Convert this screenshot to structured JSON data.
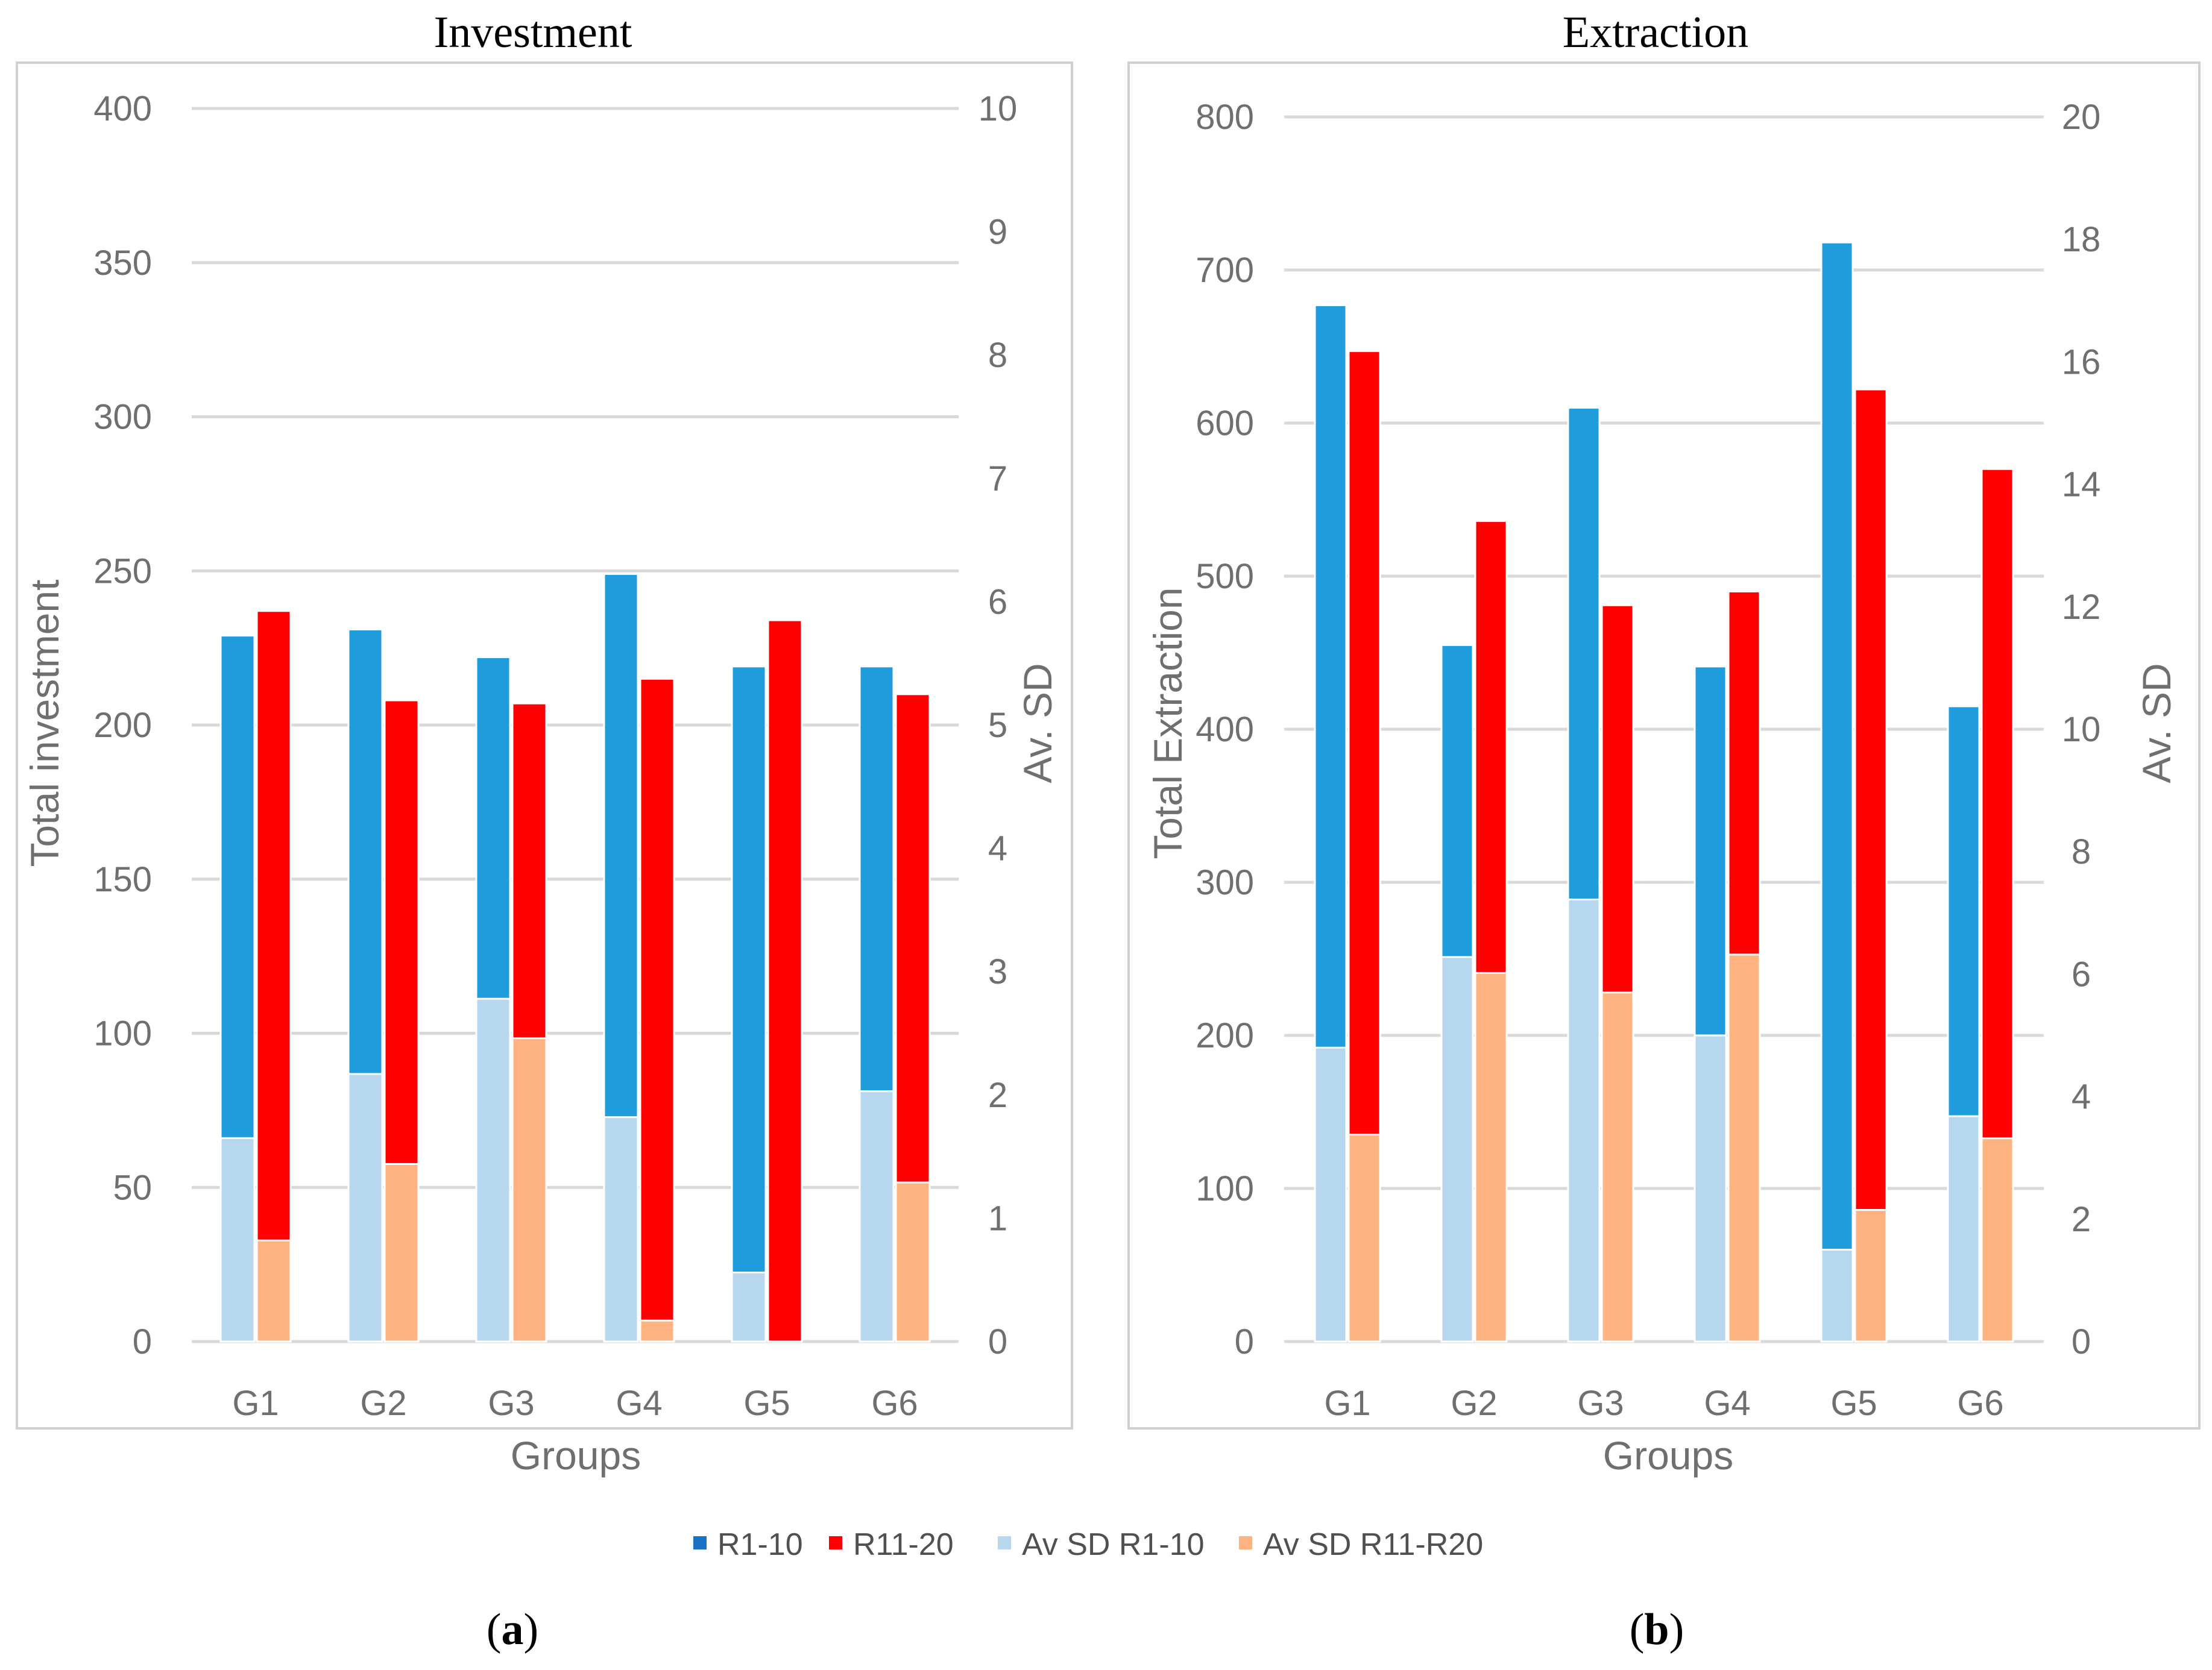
{
  "legend": [
    {
      "label": "R1-10",
      "color": "#1a72c4"
    },
    {
      "label": "R11-20",
      "color": "#ff0000"
    },
    {
      "label": "Av SD R1-10",
      "color": "#b7d7ef"
    },
    {
      "label": "Av SD R11-R20",
      "color": "#ffb380"
    }
  ],
  "colors": {
    "r1_10": "#1f9cdc",
    "r11_20": "#ff0000",
    "sd_r1_10": "#b7d7ef",
    "sd_r11_20": "#ffb380",
    "grid": "#d9d9d9",
    "frame": "#d0d0d0"
  },
  "chart_data": [
    {
      "type": "bar",
      "title": "Investment",
      "caption_letter": "a",
      "categories": [
        "G1",
        "G2",
        "G3",
        "G4",
        "G5",
        "G6"
      ],
      "xlabel": "Groups",
      "ylabel": "Total investment",
      "ylabel_right": "Av. SD",
      "ylim": [
        0,
        400
      ],
      "yticks": [
        "0",
        "50",
        "100",
        "150",
        "200",
        "250",
        "300",
        "350",
        "400"
      ],
      "ylim_right": [
        0,
        10
      ],
      "yticks_right": [
        "0",
        "1",
        "2",
        "3",
        "4",
        "5",
        "6",
        "7",
        "8",
        "9",
        "10"
      ],
      "series": [
        {
          "name": "R1-10",
          "axis": "left",
          "values": [
            229,
            231,
            222,
            249,
            219,
            219
          ]
        },
        {
          "name": "R11-20",
          "axis": "left",
          "values": [
            237,
            208,
            207,
            215,
            234,
            210
          ]
        },
        {
          "name": "Av SD R1-10",
          "axis": "right",
          "values": [
            1.65,
            2.17,
            2.78,
            1.82,
            0.56,
            2.03
          ]
        },
        {
          "name": "Av SD R11-R20",
          "axis": "right",
          "values": [
            0.82,
            1.44,
            2.46,
            0.17,
            0.0,
            1.29
          ]
        }
      ]
    },
    {
      "type": "bar",
      "title": "Extraction",
      "caption_letter": "b",
      "categories": [
        "G1",
        "G2",
        "G3",
        "G4",
        "G5",
        "G6"
      ],
      "xlabel": "Groups",
      "ylabel": "Total Extraction",
      "ylabel_right": "Av. SD",
      "ylim": [
        0,
        800
      ],
      "yticks": [
        "0",
        "100",
        "200",
        "300",
        "400",
        "500",
        "600",
        "700",
        "800"
      ],
      "ylim_right": [
        0,
        20
      ],
      "yticks_right": [
        "0",
        "2",
        "4",
        "6",
        "8",
        "10",
        "12",
        "14",
        "16",
        "18",
        "20"
      ],
      "series": [
        {
          "name": "R1-10",
          "axis": "left",
          "values": [
            677,
            455,
            610,
            441,
            718,
            415
          ]
        },
        {
          "name": "R11-20",
          "axis": "left",
          "values": [
            647,
            536,
            481,
            490,
            622,
            570
          ]
        },
        {
          "name": "Av SD R1-10",
          "axis": "right",
          "values": [
            4.8,
            6.28,
            7.22,
            5.0,
            1.5,
            3.68
          ]
        },
        {
          "name": "Av SD R11-R20",
          "axis": "right",
          "values": [
            3.38,
            6.02,
            5.7,
            6.32,
            2.15,
            3.32
          ]
        }
      ]
    }
  ]
}
